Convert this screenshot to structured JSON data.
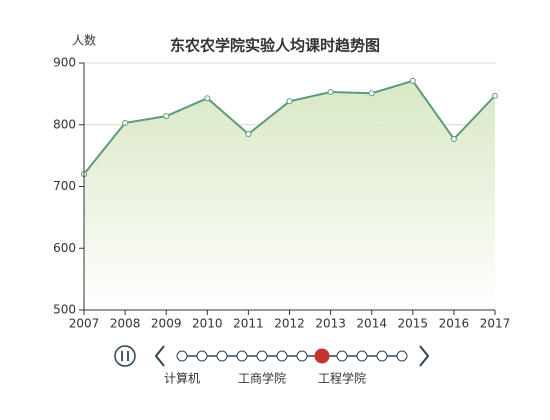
{
  "chart_data": {
    "type": "line",
    "title": "东农农学院实验人均课时趋势图",
    "y_axis_label": "人数",
    "categories": [
      "2007",
      "2008",
      "2009",
      "2010",
      "2011",
      "2012",
      "2013",
      "2014",
      "2015",
      "2016",
      "2017"
    ],
    "values": [
      720,
      803,
      814,
      843,
      785,
      838,
      853,
      851,
      871,
      777,
      847
    ],
    "color": "#5e9a7c",
    "area_color": "#d4e5bd",
    "ylim": [
      500,
      900
    ],
    "yticks": [
      500,
      600,
      700,
      800,
      900
    ],
    "grid": true,
    "timeline": {
      "labels": [
        "计算机",
        null,
        null,
        null,
        "工商学院",
        null,
        null,
        null,
        "工程学院",
        null,
        null,
        null
      ],
      "current": 7,
      "color": "#2f4554",
      "current_color": "#c23531"
    }
  }
}
